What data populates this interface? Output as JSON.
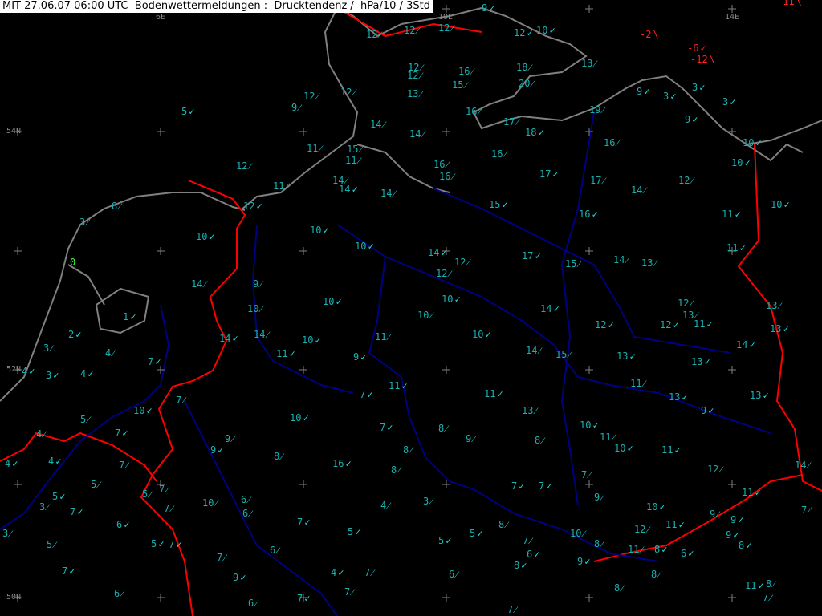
{
  "header": {
    "title": "MIT 27.06.07 06:00 UTC  Bodenwettermeldungen :  Drucktendenz /  hPa/10 / 3Std"
  },
  "grid_labels": [
    "6E",
    "10E",
    "14E",
    "54N",
    "52N",
    "50N"
  ],
  "colors": {
    "positive": "#1ab0b0",
    "negative": "#ff2020",
    "zero": "#30ff30",
    "coast": "#808080",
    "border": "#ff0000",
    "river": "#000080"
  },
  "symbols": {
    "check": "✓",
    "rising": "⁄",
    "falling": "\\"
  },
  "stations": [
    [
      "9",
      "check"
    ],
    [
      "-11",
      "falling"
    ],
    [
      "12",
      "rising"
    ],
    [
      "12",
      "rising"
    ],
    [
      "12",
      "rising"
    ],
    [
      "12",
      "check"
    ],
    [
      "10",
      "check"
    ],
    [
      "-2",
      "falling"
    ],
    [
      "-6",
      "check"
    ],
    [
      "-12",
      "falling"
    ],
    [
      "13",
      "rising"
    ],
    [
      "12",
      "rising"
    ],
    [
      "12",
      "rising"
    ],
    [
      "16",
      "rising"
    ],
    [
      "18",
      "rising"
    ],
    [
      "15",
      "rising"
    ],
    [
      "20",
      "rising"
    ],
    [
      "12",
      "rising"
    ],
    [
      "13",
      "rising"
    ],
    [
      "9",
      "check"
    ],
    [
      "3",
      "check"
    ],
    [
      "12",
      "rising"
    ],
    [
      "3",
      "check"
    ],
    [
      "3",
      "check"
    ],
    [
      "5",
      "check"
    ],
    [
      "9",
      "rising"
    ],
    [
      "16",
      "rising"
    ],
    [
      "19",
      "rising"
    ],
    [
      "14",
      "rising"
    ],
    [
      "17",
      "rising"
    ],
    [
      "9",
      "check"
    ],
    [
      "14",
      "rising"
    ],
    [
      "18",
      "check"
    ],
    [
      "16",
      "rising"
    ],
    [
      "10",
      "check"
    ],
    [
      "11",
      "rising"
    ],
    [
      "15",
      "rising"
    ],
    [
      "16",
      "rising"
    ],
    [
      "16",
      "rising"
    ],
    [
      "11",
      "rising"
    ],
    [
      "10",
      "check"
    ],
    [
      "12",
      "rising"
    ],
    [
      "17",
      "check"
    ],
    [
      "14",
      "rising"
    ],
    [
      "16",
      "rising"
    ],
    [
      "17",
      "rising"
    ],
    [
      "12",
      "rising"
    ],
    [
      "11",
      "rising"
    ],
    [
      "14",
      "check"
    ],
    [
      "14",
      "rising"
    ],
    [
      "14",
      "rising"
    ],
    [
      "8",
      "rising"
    ],
    [
      "12",
      "check"
    ],
    [
      "15",
      "check"
    ],
    [
      "10",
      "check"
    ],
    [
      "3",
      "rising"
    ],
    [
      "16",
      "check"
    ],
    [
      "11",
      "check"
    ],
    [
      "10",
      "check"
    ],
    [
      "10",
      "check"
    ],
    [
      "10",
      "check"
    ],
    [
      "11",
      "check"
    ],
    [
      "14",
      "check"
    ],
    [
      "12",
      "rising"
    ],
    [
      "17",
      "check"
    ],
    [
      "15",
      "rising"
    ],
    [
      "14",
      "rising"
    ],
    [
      "13",
      "rising"
    ],
    [
      "0",
      ""
    ],
    [
      "14",
      "rising"
    ],
    [
      "9",
      "rising"
    ],
    [
      "12",
      "rising"
    ],
    [
      "10",
      "check"
    ],
    [
      "10",
      "check"
    ],
    [
      "12",
      "rising"
    ],
    [
      "13",
      "rising"
    ],
    [
      "10",
      "rising"
    ],
    [
      "14",
      "check"
    ],
    [
      "1",
      "check"
    ],
    [
      "10",
      "rising"
    ],
    [
      "13",
      "rising"
    ],
    [
      "12",
      "check"
    ],
    [
      "12",
      "check"
    ],
    [
      "11",
      "check"
    ],
    [
      "13",
      "check"
    ],
    [
      "2",
      "check"
    ],
    [
      "14",
      "rising"
    ],
    [
      "10",
      "check"
    ],
    [
      "14",
      "check"
    ],
    [
      "10",
      "check"
    ],
    [
      "11",
      "rising"
    ],
    [
      "14",
      "check"
    ],
    [
      "3",
      "rising"
    ],
    [
      "4",
      "rising"
    ],
    [
      "11",
      "check"
    ],
    [
      "9",
      "check"
    ],
    [
      "14",
      "rising"
    ],
    [
      "15",
      "rising"
    ],
    [
      "13",
      "check"
    ],
    [
      "7",
      "check"
    ],
    [
      "13",
      "check"
    ],
    [
      "4",
      "check"
    ],
    [
      "3",
      "check"
    ],
    [
      "4",
      "check"
    ],
    [
      "11",
      "check"
    ],
    [
      "11",
      "rising"
    ],
    [
      "7",
      "rising"
    ],
    [
      "7",
      "check"
    ],
    [
      "11",
      "check"
    ],
    [
      "13",
      "check"
    ],
    [
      "13",
      "check"
    ],
    [
      "10",
      "check"
    ],
    [
      "5",
      "rising"
    ],
    [
      "13",
      "rising"
    ],
    [
      "9",
      "check"
    ],
    [
      "10",
      "check"
    ],
    [
      "7",
      "check"
    ],
    [
      "4",
      "rising"
    ],
    [
      "9",
      "rising"
    ],
    [
      "7",
      "check"
    ],
    [
      "8",
      "rising"
    ],
    [
      "9",
      "rising"
    ],
    [
      "8",
      "rising"
    ],
    [
      "10",
      "check"
    ],
    [
      "11",
      "rising"
    ],
    [
      "9",
      "check"
    ],
    [
      "8",
      "rising"
    ],
    [
      "10",
      "check"
    ],
    [
      "11",
      "check"
    ],
    [
      "4",
      "check"
    ],
    [
      "4",
      "check"
    ],
    [
      "7",
      "rising"
    ],
    [
      "8",
      "rising"
    ],
    [
      "16",
      "check"
    ],
    [
      "8",
      "rising"
    ],
    [
      "12",
      "rising"
    ],
    [
      "14",
      "rising"
    ],
    [
      "5",
      "rising"
    ],
    [
      "7",
      "rising"
    ],
    [
      "5",
      "rising"
    ],
    [
      "7",
      "check"
    ],
    [
      "7",
      "check"
    ],
    [
      "7",
      "rising"
    ],
    [
      "5",
      "check"
    ],
    [
      "10",
      "rising"
    ],
    [
      "6",
      "rising"
    ],
    [
      "9",
      "rising"
    ],
    [
      "11",
      "check"
    ],
    [
      "3",
      "rising"
    ],
    [
      "7",
      "rising"
    ],
    [
      "7",
      "check"
    ],
    [
      "4",
      "rising"
    ],
    [
      "3",
      "rising"
    ],
    [
      "10",
      "check"
    ],
    [
      "7",
      "rising"
    ],
    [
      "6",
      "rising"
    ],
    [
      "9",
      "rising"
    ],
    [
      "9",
      "check"
    ],
    [
      "6",
      "check"
    ],
    [
      "7",
      "check"
    ],
    [
      "8",
      "rising"
    ],
    [
      "12",
      "rising"
    ],
    [
      "11",
      "check"
    ],
    [
      "3",
      "rising"
    ],
    [
      "5",
      "check"
    ],
    [
      "5",
      "check"
    ],
    [
      "10",
      "rising"
    ],
    [
      "9",
      "check"
    ],
    [
      "5",
      "rising"
    ],
    [
      "5",
      "check"
    ],
    [
      "7",
      "check"
    ],
    [
      "5",
      "check"
    ],
    [
      "7",
      "rising"
    ],
    [
      "8",
      "rising"
    ],
    [
      "8",
      "check"
    ],
    [
      "6",
      "rising"
    ],
    [
      "11",
      "rising"
    ],
    [
      "8",
      "check"
    ],
    [
      "6",
      "check"
    ],
    [
      "6",
      "check"
    ],
    [
      "7",
      "rising"
    ],
    [
      "9",
      "check"
    ],
    [
      "7",
      "check"
    ],
    [
      "4",
      "check"
    ],
    [
      "7",
      "rising"
    ],
    [
      "6",
      "rising"
    ],
    [
      "8",
      "check"
    ],
    [
      "9",
      "check"
    ],
    [
      "8",
      "rising"
    ],
    [
      "11",
      "check"
    ],
    [
      "8",
      "rising"
    ],
    [
      "6",
      "rising"
    ],
    [
      "7",
      "rising"
    ],
    [
      "8",
      "rising"
    ],
    [
      "6",
      "rising"
    ],
    [
      "7",
      "check"
    ],
    [
      "7",
      "rising"
    ],
    [
      "7",
      "rising"
    ]
  ]
}
